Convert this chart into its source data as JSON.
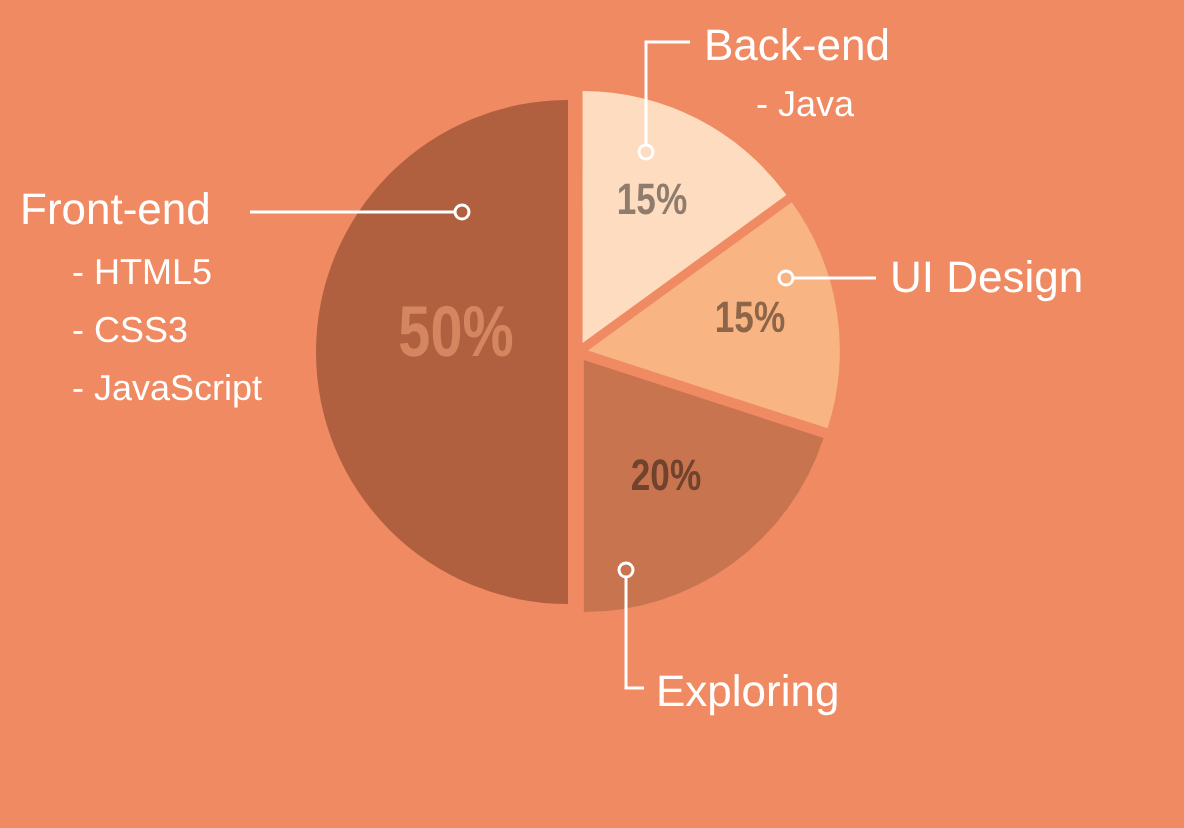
{
  "chart_data": {
    "type": "pie",
    "categories": [
      "Back-end",
      "UI Design",
      "Exploring",
      "Front-end"
    ],
    "values": [
      15,
      15,
      20,
      50
    ],
    "colors": [
      "#fddcc0",
      "#f9b483",
      "#c8744f",
      "#b0603e"
    ],
    "value_labels": [
      "15%",
      "15%",
      "20%",
      "50%"
    ],
    "annotations": [
      "- Java",
      "- HTML5",
      "- CSS3",
      "- JavaScript"
    ]
  }
}
